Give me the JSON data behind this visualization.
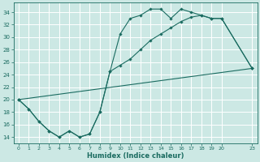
{
  "xlabel": "Humidex (Indice chaleur)",
  "bg_color": "#cce8e4",
  "line_color": "#1a6b60",
  "grid_color": "#ffffff",
  "xlim": [
    -0.5,
    23.5
  ],
  "ylim": [
    13.0,
    35.5
  ],
  "xticks": [
    0,
    1,
    2,
    3,
    4,
    5,
    6,
    7,
    8,
    9,
    10,
    11,
    12,
    13,
    14,
    15,
    16,
    17,
    18,
    19,
    20,
    23
  ],
  "yticks": [
    14,
    16,
    18,
    20,
    22,
    24,
    26,
    28,
    30,
    32,
    34
  ],
  "line1_x": [
    0,
    1,
    2,
    3,
    4,
    5,
    6,
    7,
    8,
    9,
    10,
    11,
    12,
    13,
    14,
    15,
    16,
    17,
    18,
    19,
    20,
    23
  ],
  "line1_y": [
    20,
    18.5,
    16.5,
    15,
    14,
    15,
    14,
    14.5,
    18,
    24.5,
    30.5,
    33,
    33.5,
    34.5,
    34.5,
    33,
    34.5,
    34,
    33.5,
    33,
    33,
    25
  ],
  "line2_x": [
    0,
    1,
    2,
    3,
    4,
    5,
    6,
    7,
    8,
    9,
    10,
    11,
    12,
    13,
    14,
    15,
    16,
    17,
    18,
    19,
    20,
    23
  ],
  "line2_y": [
    20,
    18.5,
    16.5,
    15,
    14,
    15,
    14,
    14.5,
    18,
    24.5,
    25.5,
    26.5,
    28,
    29.5,
    30.5,
    31.5,
    32.5,
    33.2,
    33.5,
    33,
    33,
    25
  ],
  "line3_x": [
    0,
    23
  ],
  "line3_y": [
    20,
    25
  ]
}
